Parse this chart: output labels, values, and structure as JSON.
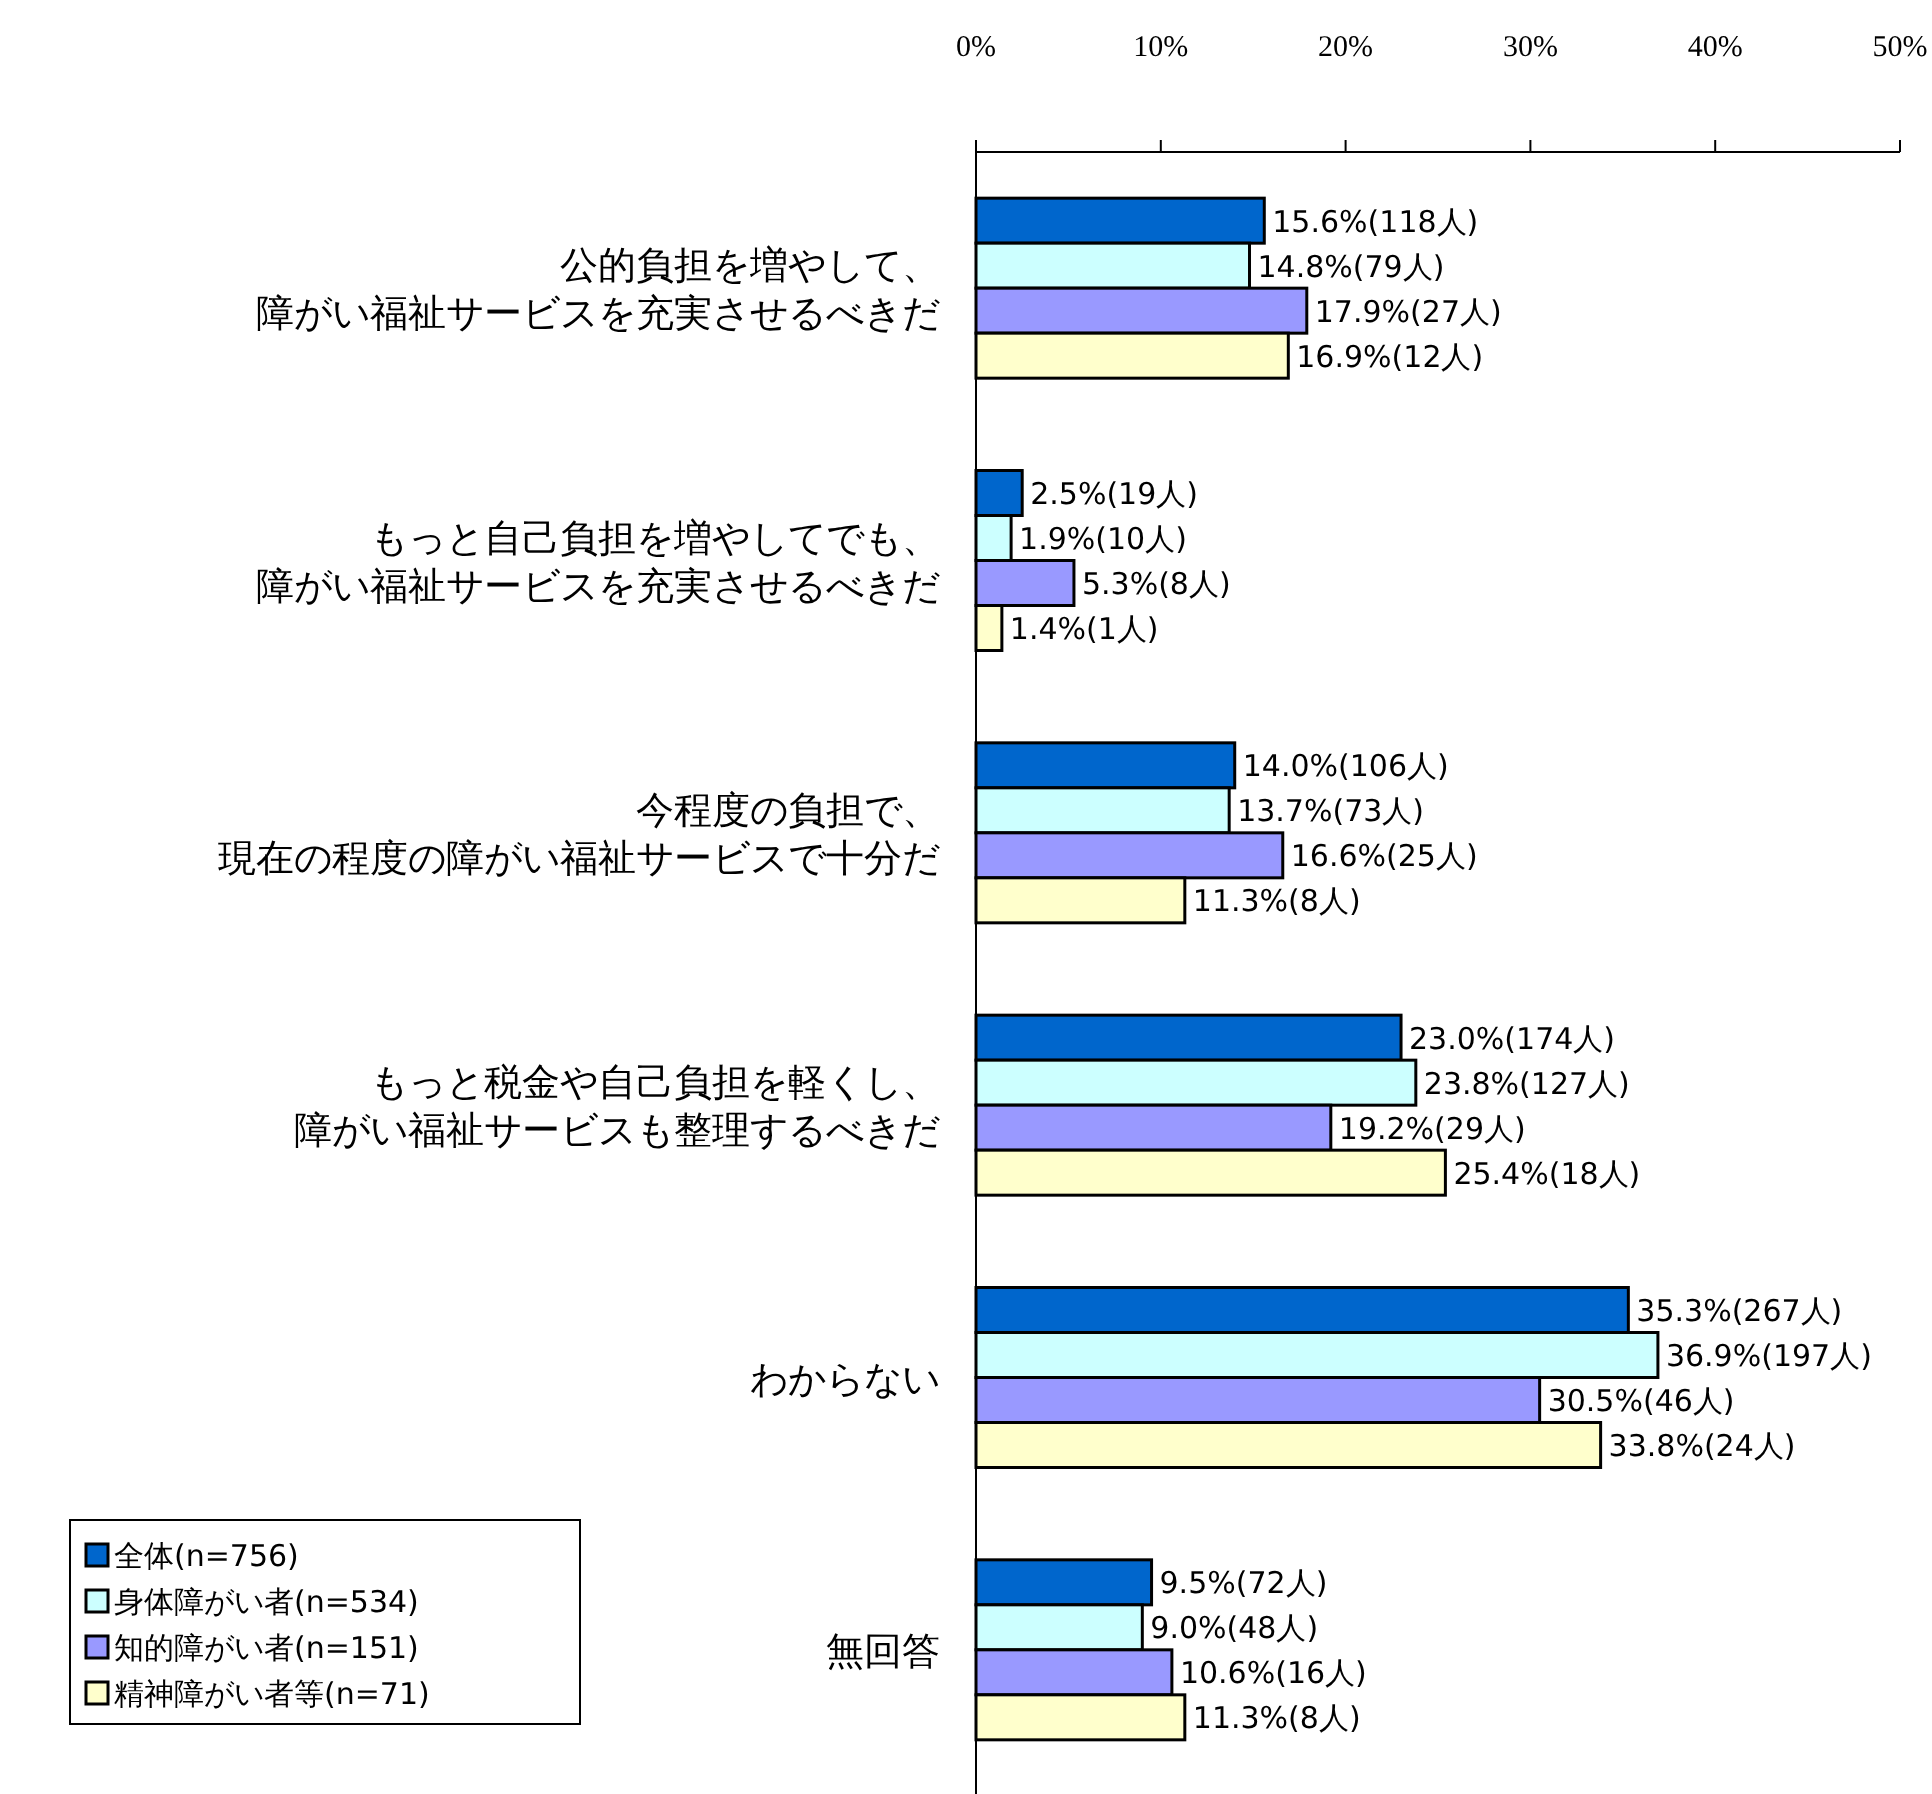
{
  "chart_data": {
    "type": "bar",
    "orientation": "horizontal",
    "legend": "bottom left",
    "categories": [
      "公的負担を増やして、障がい福祉サービスを充実させるべきだ",
      "もっと自己負担を増やしてでも、障がい福祉サービスを充実させるべきだ",
      "今程度の負担で、現在の程度の障がい福祉サービスで十分だ",
      "もっと税金や自己負担を軽くし、障がい福祉サービスも整理するべきだ",
      "わからない",
      "無回答"
    ],
    "series": [
      {
        "name": "全体(n=756)",
        "color": "#0066cc",
        "values": [
          15.6,
          2.5,
          14.0,
          23.0,
          35.3,
          9.5
        ],
        "value_labels": [
          "15.6%(118人)",
          "2.5%(19人)",
          "14.0%(106人)",
          "23.0%(174人)",
          "35.3%(267人)",
          "9.5%(72人)"
        ]
      },
      {
        "name": "身体障がい者(n=534)",
        "color": "#ccffff",
        "values": [
          14.8,
          1.9,
          13.7,
          23.8,
          36.9,
          9.0
        ],
        "value_labels": [
          "14.8%(79人)",
          "1.9%(10人)",
          "13.7%(73人)",
          "23.8%(127人)",
          "36.9%(197人)",
          "9.0%(48人)"
        ]
      },
      {
        "name": "知的障がい者(n=151)",
        "color": "#9999ff",
        "values": [
          17.9,
          5.3,
          16.6,
          19.2,
          30.5,
          10.6
        ],
        "value_labels": [
          "17.9%(27人)",
          "5.3%(8人)",
          "16.6%(25人)",
          "19.2%(29人)",
          "30.5%(46人)",
          "10.6%(16人)"
        ]
      },
      {
        "name": "精神障がい者等(n=71)",
        "color": "#ffffcc",
        "values": [
          16.9,
          1.4,
          11.3,
          25.4,
          33.8,
          11.3
        ],
        "value_labels": [
          "16.9%(12人)",
          "1.4%(1人)",
          "11.3%(8人)",
          "25.4%(18人)",
          "33.8%(24人)",
          "11.3%(8人)"
        ]
      }
    ],
    "xlim": [
      0,
      50
    ],
    "xticks": [
      {
        "value": 0,
        "label": "0%"
      },
      {
        "value": 10,
        "label": "10%"
      },
      {
        "value": 20,
        "label": "20%"
      },
      {
        "value": 30,
        "label": "30%"
      },
      {
        "value": 40,
        "label": "40%"
      },
      {
        "value": 50,
        "label": "50%"
      }
    ]
  }
}
